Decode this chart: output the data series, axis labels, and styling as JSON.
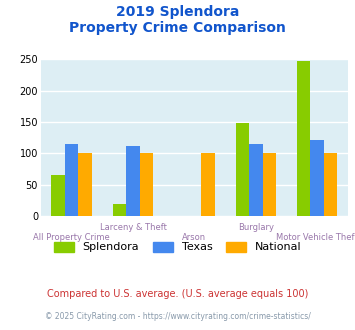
{
  "title_line1": "2019 Splendora",
  "title_line2": "Property Crime Comparison",
  "categories": [
    "All Property Crime",
    "Larceny & Theft",
    "Arson",
    "Burglary",
    "Motor Vehicle Theft"
  ],
  "series": {
    "Splendora": [
      65,
      20,
      0,
      148,
      248
    ],
    "Texas": [
      115,
      112,
      0,
      115,
      122
    ],
    "National": [
      100,
      100,
      100,
      100,
      100
    ]
  },
  "colors": {
    "Splendora": "#88cc00",
    "Texas": "#4488ee",
    "National": "#ffaa00"
  },
  "ylim": [
    0,
    250
  ],
  "yticks": [
    0,
    50,
    100,
    150,
    200,
    250
  ],
  "background_color": "#ddeef4",
  "grid_color": "#ffffff",
  "title_color": "#1155cc",
  "xlabel_color": "#9977aa",
  "footnote1": "Compared to U.S. average. (U.S. average equals 100)",
  "footnote2": "© 2025 CityRating.com - https://www.cityrating.com/crime-statistics/",
  "footnote1_color": "#cc3333",
  "footnote2_color": "#8899aa"
}
